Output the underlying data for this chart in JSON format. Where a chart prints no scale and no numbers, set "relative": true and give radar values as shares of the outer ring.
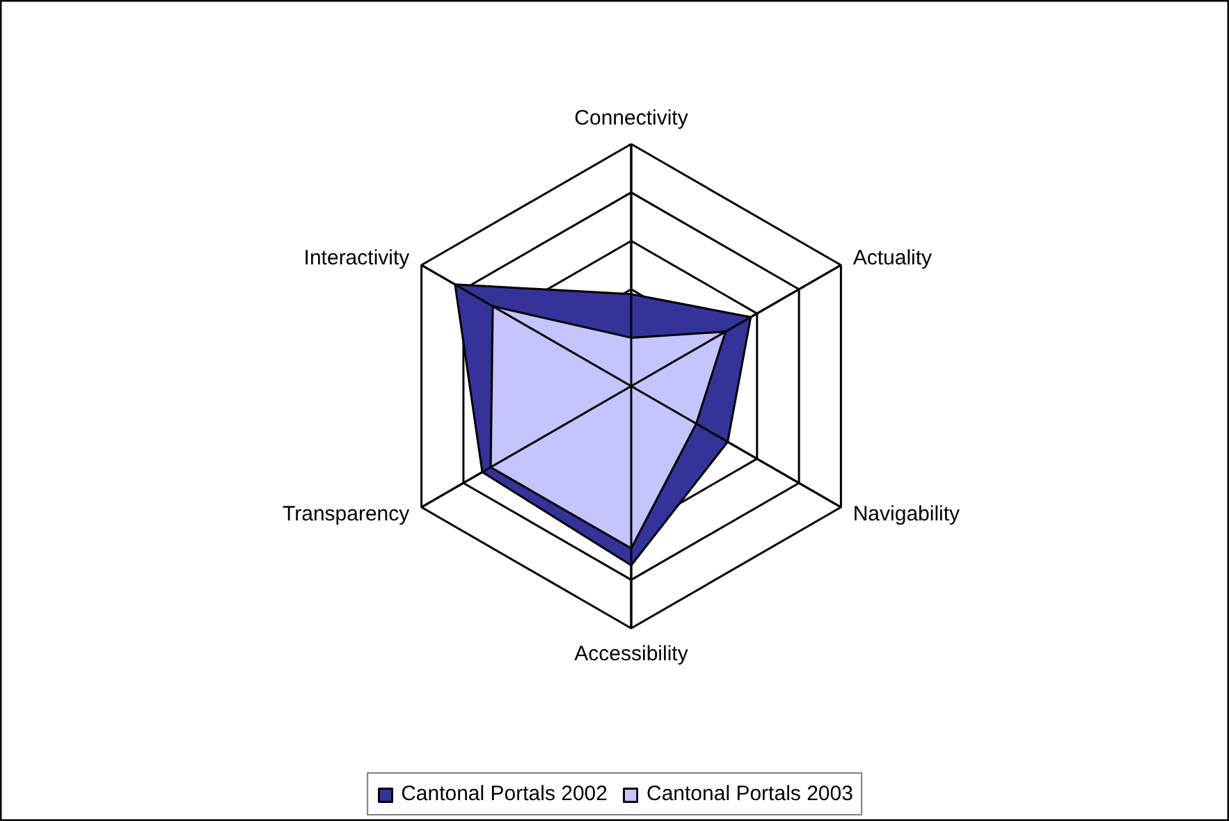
{
  "chart_data": {
    "type": "radar",
    "relative": true,
    "categories": [
      "Connectivity",
      "Actuality",
      "Navigability",
      "Accessibility",
      "Transparency",
      "Interactivity"
    ],
    "series": [
      {
        "name": "Cantonal Portals 2002",
        "color": "#333399",
        "values": [
          0.38,
          0.57,
          0.46,
          0.74,
          0.71,
          0.84
        ]
      },
      {
        "name": "Cantonal Portals 2003",
        "color": "#c4c4ff",
        "values": [
          0.2,
          0.45,
          0.31,
          0.67,
          0.67,
          0.66
        ]
      }
    ],
    "legend": "bottom"
  }
}
